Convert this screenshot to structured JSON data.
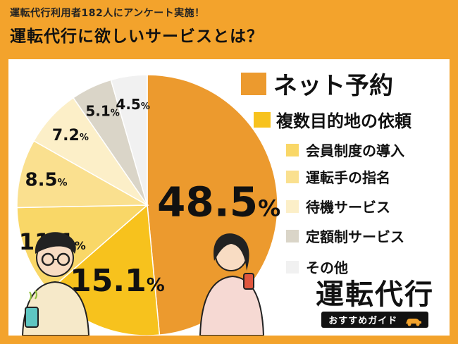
{
  "header": {
    "subtitle": "運転代行利用者182人にアンケート実施！",
    "title": "運転代行に欲しいサービスとは？"
  },
  "chart_data": {
    "type": "pie",
    "categories": [
      "ネット予約",
      "複数目的地の依頼",
      "会員制度の導入",
      "運転手の指名",
      "待機サービス",
      "定額制サービス",
      "その他"
    ],
    "values": [
      48.5,
      15.1,
      11.1,
      8.5,
      7.2,
      5.1,
      4.5
    ],
    "value_labels": [
      "48.5",
      "15.1",
      "11.1",
      "8.5",
      "7.2",
      "5.1",
      "4.5"
    ],
    "unit": "%",
    "colors": [
      "#EC9A2E",
      "#F7C21D",
      "#F9D767",
      "#FAE08F",
      "#FCEFC8",
      "#DAD5C8",
      "#F1F1F1"
    ],
    "legend_placement": "right",
    "start": "top, clockwise"
  },
  "brand": {
    "logo": "運転代行",
    "tagline": "おすすめガイド"
  },
  "icons": [
    "car-icon",
    "person-icon"
  ]
}
